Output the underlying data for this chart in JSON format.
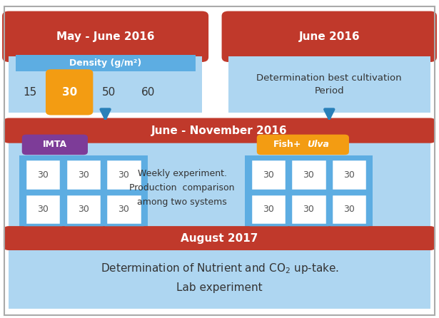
{
  "bg_color": "#ffffff",
  "red_bar_color": "#c0392b",
  "light_blue_color": "#aed6f1",
  "blue_box_color": "#5dade2",
  "density_bar_color": "#5dade2",
  "purple_color": "#7d3c98",
  "orange_color": "#f39c12",
  "arrow_color": "#2980b9",
  "may_june_text": "May - June 2016",
  "june_text": "June 2016",
  "density_text": "Density (g/m²)",
  "density_values": [
    "15",
    "30",
    "50",
    "60"
  ],
  "highlighted_density": "30",
  "cultivation_text": "Determination best cultivation\nPeriod",
  "june_nov_text": "June - November 2016",
  "imta_text": "IMTA",
  "fish_text": "Fish+",
  "ulva_text": "Ulva",
  "grid_value": "30",
  "weekly_text": "Weekly experiment.\nProduction  comparison\namong two systems",
  "aug_text": "August 2017",
  "nutrient_line1": "Determination of Nutrient and CO$_2$ up-take.",
  "nutrient_line2": "Lab experiment"
}
